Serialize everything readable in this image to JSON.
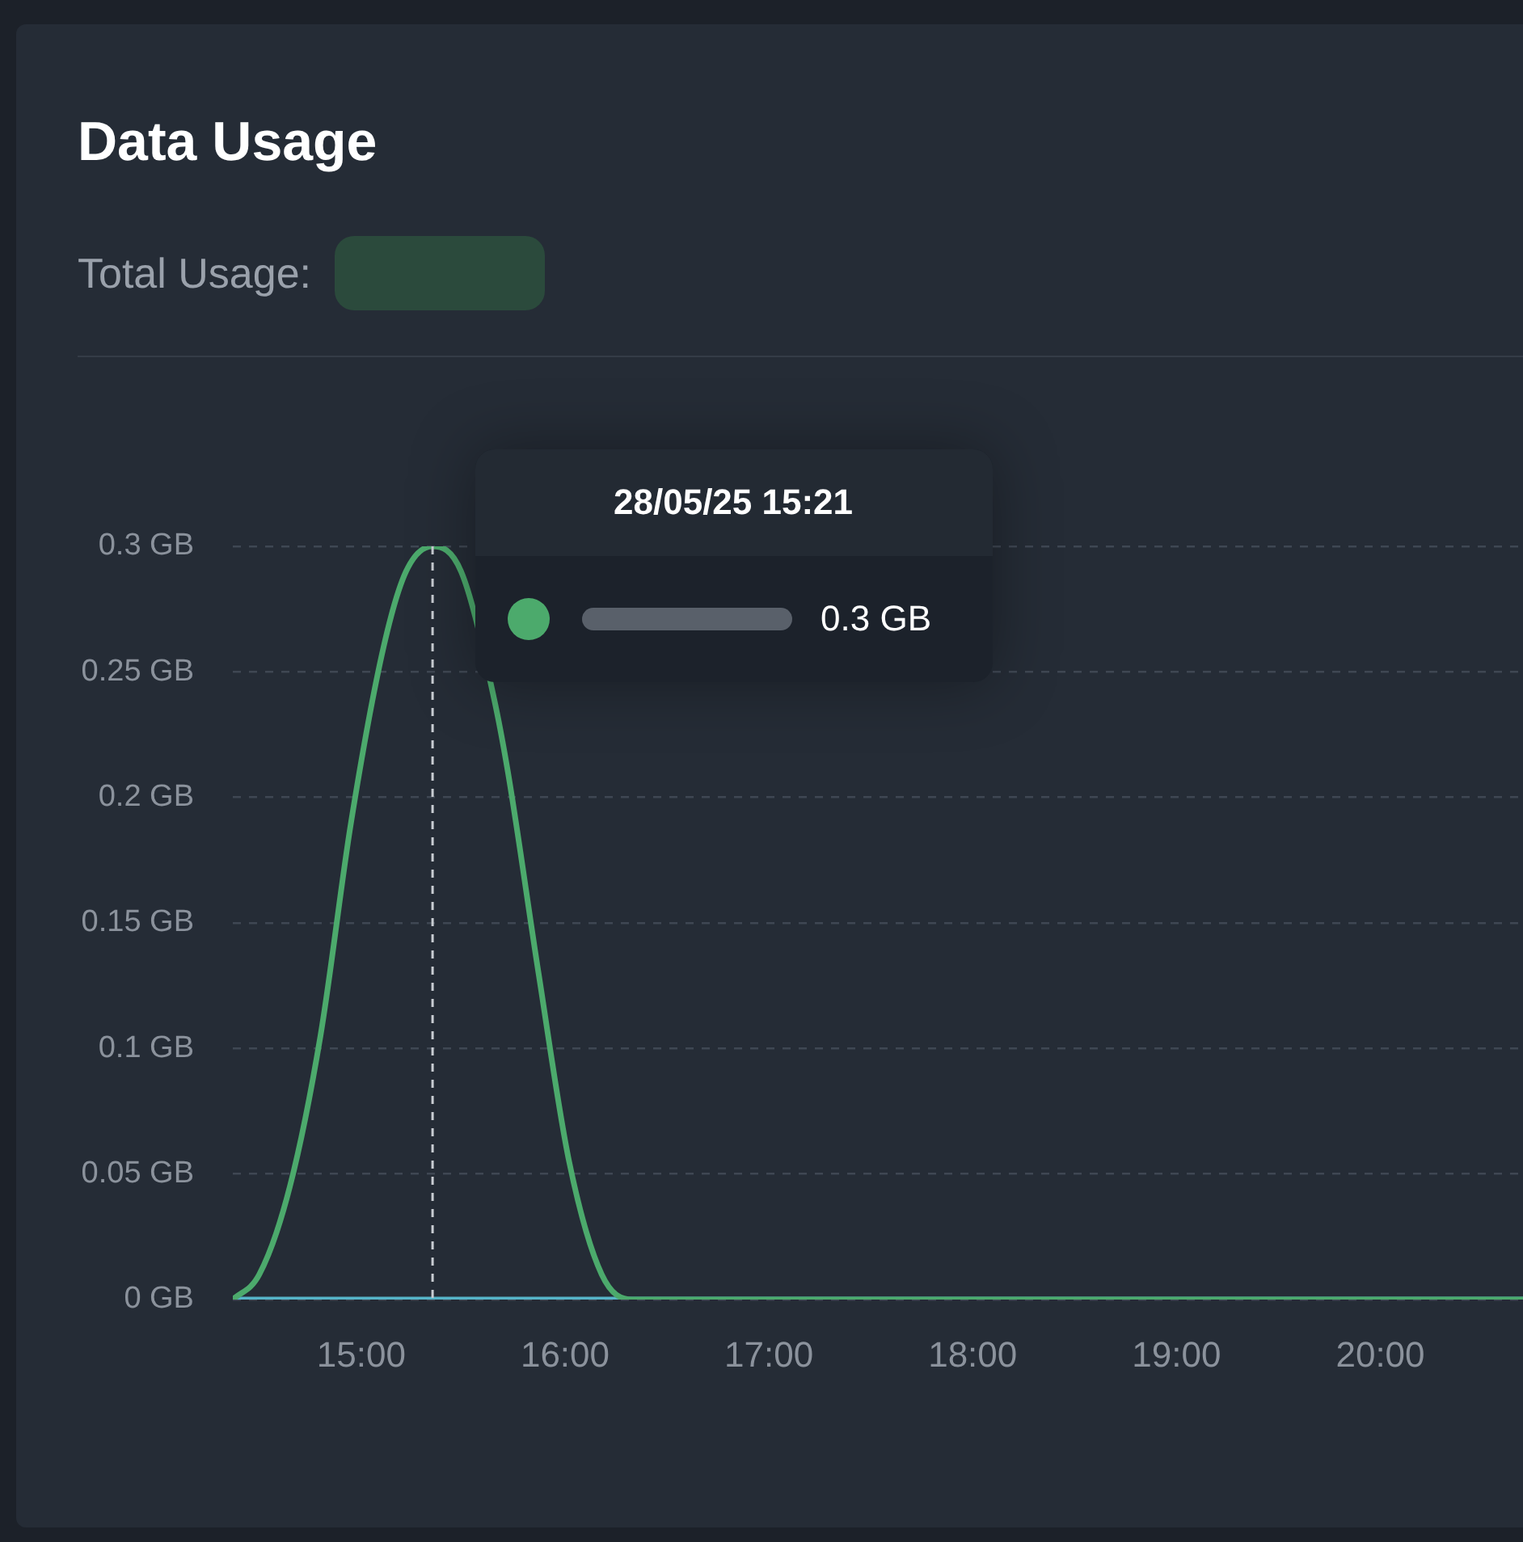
{
  "chart_data": {
    "type": "line",
    "title": "Data Usage",
    "subtitle": "Total Usage:",
    "xlim": [
      14.37,
      20.7
    ],
    "xticks": [
      {
        "value": 15,
        "label": "15:00"
      },
      {
        "value": 16,
        "label": "16:00"
      },
      {
        "value": 17,
        "label": "17:00"
      },
      {
        "value": 18,
        "label": "18:00"
      },
      {
        "value": 19,
        "label": "19:00"
      },
      {
        "value": 20,
        "label": "20:00"
      }
    ],
    "ylim": [
      0,
      0.3
    ],
    "yticks": [
      {
        "value": 0,
        "label": "0 GB"
      },
      {
        "value": 0.05,
        "label": "0.05 GB"
      },
      {
        "value": 0.1,
        "label": "0.1 GB"
      },
      {
        "value": 0.15,
        "label": "0.15 GB"
      },
      {
        "value": 0.2,
        "label": "0.2 GB"
      },
      {
        "value": 0.25,
        "label": "0.25 GB"
      },
      {
        "value": 0.3,
        "label": "0.3 GB"
      }
    ],
    "grid": "y",
    "legend": false,
    "marker": "none",
    "line_style": "solid",
    "series": [
      {
        "color": "#4caa6c",
        "x": [
          14.37,
          14.5,
          14.65,
          14.8,
          14.95,
          15.11,
          15.22,
          15.35,
          15.49,
          15.65,
          15.72,
          15.87,
          16.02,
          16.18,
          16.33,
          20.7
        ],
        "values": [
          0,
          0.01,
          0.045,
          0.105,
          0.19,
          0.26,
          0.29,
          0.3,
          0.29,
          0.24,
          0.21,
          0.13,
          0.055,
          0.01,
          0,
          0
        ]
      },
      {
        "color": "#56b4c8",
        "x": [
          14.37,
          20.7
        ],
        "values": [
          0,
          0
        ]
      }
    ],
    "ref_lines": [
      {
        "axis": "x",
        "value": 15.35,
        "color": "#c8ccd2",
        "line_style": "dashed"
      }
    ],
    "annotations": [
      "28/05/25 15:21",
      "0.3 GB"
    ]
  }
}
